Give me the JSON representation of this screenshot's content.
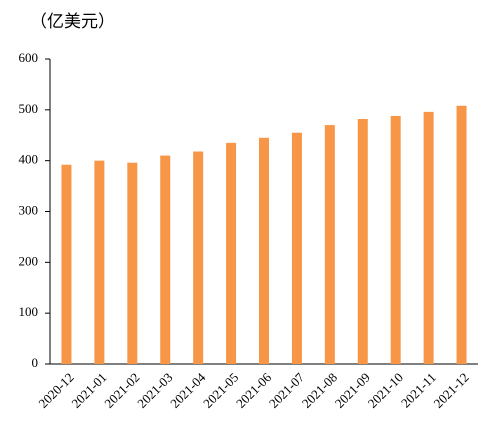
{
  "chart_data": {
    "type": "bar",
    "y_label": "（亿美元）",
    "categories": [
      "2020-12",
      "2021-01",
      "2021-02",
      "2021-03",
      "2021-04",
      "2021-05",
      "2021-06",
      "2021-07",
      "2021-08",
      "2021-09",
      "2021-10",
      "2021-11",
      "2021-12"
    ],
    "values": [
      392,
      400,
      396,
      410,
      418,
      435,
      445,
      455,
      470,
      482,
      488,
      496,
      508
    ],
    "color": "#f79646",
    "ylim": [
      0,
      600
    ],
    "yticks": [
      0,
      100,
      200,
      300,
      400,
      500,
      600
    ],
    "grid": false
  }
}
